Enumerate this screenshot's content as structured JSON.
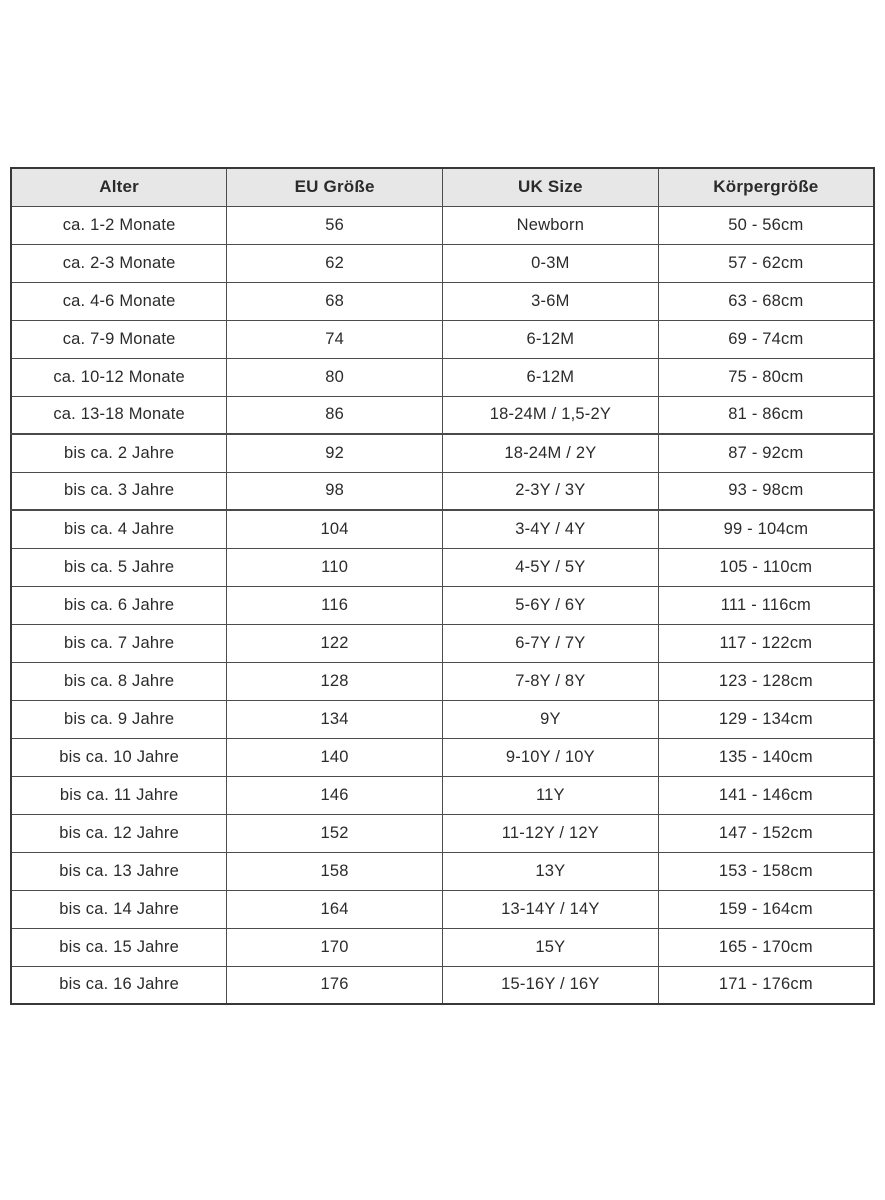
{
  "styles": {
    "page_bg": "#ffffff",
    "text_color": "#2b2b2b",
    "header_bg": "#e7e7e7",
    "border_color": "#4d4d4d",
    "outer_border_color": "#383838"
  },
  "table": {
    "columns": [
      "Alter",
      "EU Größe",
      "UK Size",
      "Körpergröße"
    ],
    "group_separator_rows": [
      6,
      8
    ],
    "rows": [
      [
        "ca. 1-2 Monate",
        "56",
        "Newborn",
        "50 - 56cm"
      ],
      [
        "ca. 2-3 Monate",
        "62",
        "0-3M",
        "57 - 62cm"
      ],
      [
        "ca. 4-6 Monate",
        "68",
        "3-6M",
        "63 - 68cm"
      ],
      [
        "ca. 7-9 Monate",
        "74",
        "6-12M",
        "69 - 74cm"
      ],
      [
        "ca. 10-12 Monate",
        "80",
        "6-12M",
        "75 - 80cm"
      ],
      [
        "ca. 13-18 Monate",
        "86",
        "18-24M / 1,5-2Y",
        "81 - 86cm"
      ],
      [
        "bis ca. 2 Jahre",
        "92",
        "18-24M / 2Y",
        "87 - 92cm"
      ],
      [
        "bis ca. 3 Jahre",
        "98",
        "2-3Y / 3Y",
        "93 - 98cm"
      ],
      [
        "bis ca. 4 Jahre",
        "104",
        "3-4Y / 4Y",
        "99 - 104cm"
      ],
      [
        "bis ca. 5 Jahre",
        "110",
        "4-5Y / 5Y",
        "105 - 110cm"
      ],
      [
        "bis ca. 6 Jahre",
        "116",
        "5-6Y / 6Y",
        "111 - 116cm"
      ],
      [
        "bis ca. 7 Jahre",
        "122",
        "6-7Y / 7Y",
        "117 - 122cm"
      ],
      [
        "bis ca. 8 Jahre",
        "128",
        "7-8Y / 8Y",
        "123 - 128cm"
      ],
      [
        "bis ca. 9 Jahre",
        "134",
        "9Y",
        "129 - 134cm"
      ],
      [
        "bis ca. 10 Jahre",
        "140",
        "9-10Y / 10Y",
        "135 - 140cm"
      ],
      [
        "bis ca. 11 Jahre",
        "146",
        "11Y",
        "141 - 146cm"
      ],
      [
        "bis ca. 12 Jahre",
        "152",
        "11-12Y / 12Y",
        "147 - 152cm"
      ],
      [
        "bis ca. 13 Jahre",
        "158",
        "13Y",
        "153 - 158cm"
      ],
      [
        "bis ca. 14 Jahre",
        "164",
        "13-14Y / 14Y",
        "159 - 164cm"
      ],
      [
        "bis ca. 15 Jahre",
        "170",
        "15Y",
        "165 - 170cm"
      ],
      [
        "bis ca. 16 Jahre",
        "176",
        "15-16Y / 16Y",
        "171 - 176cm"
      ]
    ]
  }
}
